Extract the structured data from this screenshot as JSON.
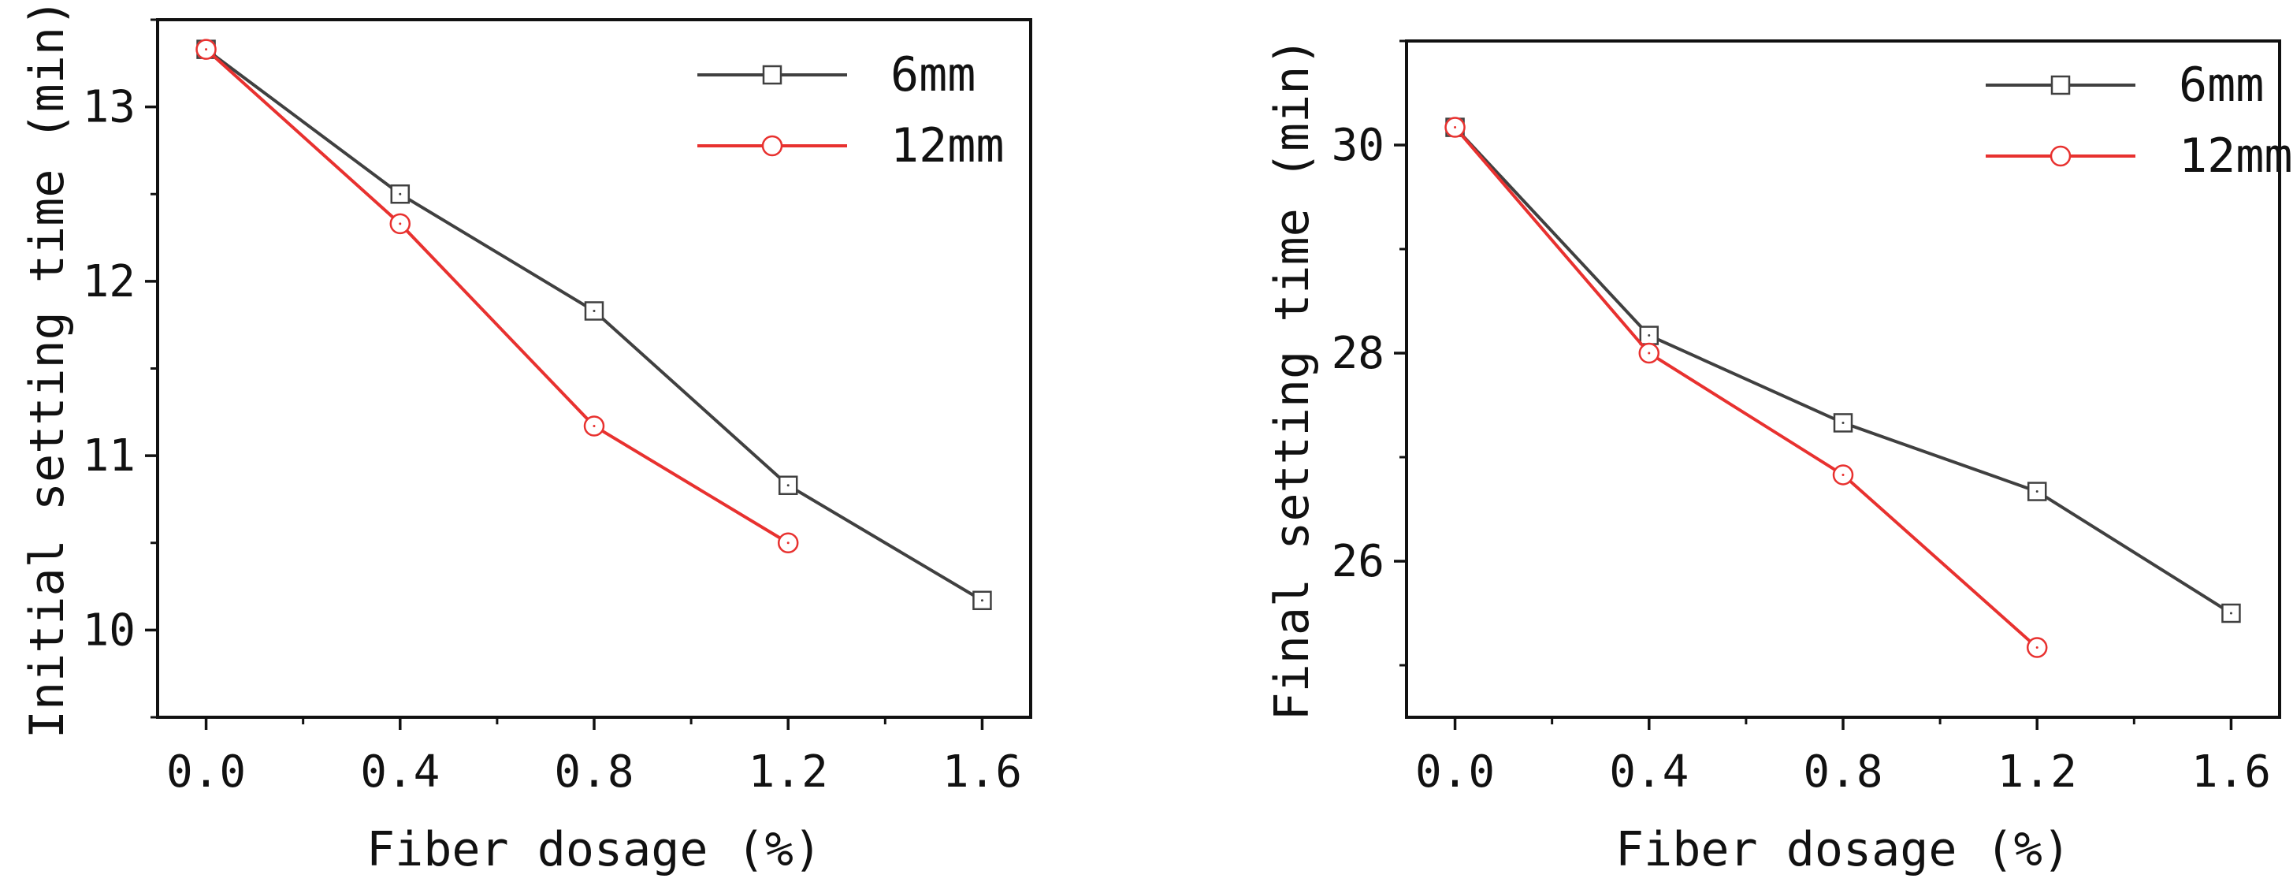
{
  "chart_data": [
    {
      "type": "line",
      "title": "",
      "xlabel": "Fiber dosage (%)",
      "ylabel": "Initial setting time (min)",
      "xlim": [
        -0.1,
        1.7
      ],
      "ylim": [
        9.5,
        13.5
      ],
      "xticks": [
        0.0,
        0.4,
        0.8,
        1.2,
        1.6
      ],
      "xtick_labels": [
        "0.0",
        "0.4",
        "0.8",
        "1.2",
        "1.6"
      ],
      "yticks": [
        10,
        11,
        12,
        13
      ],
      "ytick_labels": [
        "10",
        "11",
        "12",
        "13"
      ],
      "grid": false,
      "legend_position": "top-right",
      "series": [
        {
          "name": "6mm",
          "color": "#404040",
          "marker": "square",
          "x": [
            0.0,
            0.4,
            0.8,
            1.2,
            1.6
          ],
          "y": [
            13.33,
            12.5,
            11.83,
            10.83,
            10.17
          ]
        },
        {
          "name": "12mm",
          "color": "#e8312f",
          "marker": "circle",
          "x": [
            0.0,
            0.4,
            0.8,
            1.2
          ],
          "y": [
            13.33,
            12.33,
            11.17,
            10.5
          ]
        }
      ]
    },
    {
      "type": "line",
      "title": "",
      "xlabel": "Fiber dosage (%)",
      "ylabel": "Final setting time (min)",
      "xlim": [
        -0.1,
        1.7
      ],
      "ylim": [
        24.5,
        31.0
      ],
      "xticks": [
        0.0,
        0.4,
        0.8,
        1.2,
        1.6
      ],
      "xtick_labels": [
        "0.0",
        "0.4",
        "0.8",
        "1.2",
        "1.6"
      ],
      "yticks": [
        26,
        28,
        30
      ],
      "ytick_labels": [
        "26",
        "28",
        "30"
      ],
      "grid": false,
      "legend_position": "top-right",
      "series": [
        {
          "name": "6mm",
          "color": "#404040",
          "marker": "square",
          "x": [
            0.0,
            0.4,
            0.8,
            1.2,
            1.6
          ],
          "y": [
            30.17,
            28.17,
            27.33,
            26.67,
            25.5
          ]
        },
        {
          "name": "12mm",
          "color": "#e8312f",
          "marker": "circle",
          "x": [
            0.0,
            0.4,
            0.8,
            1.2
          ],
          "y": [
            30.17,
            28.0,
            26.83,
            25.17
          ]
        }
      ]
    }
  ]
}
